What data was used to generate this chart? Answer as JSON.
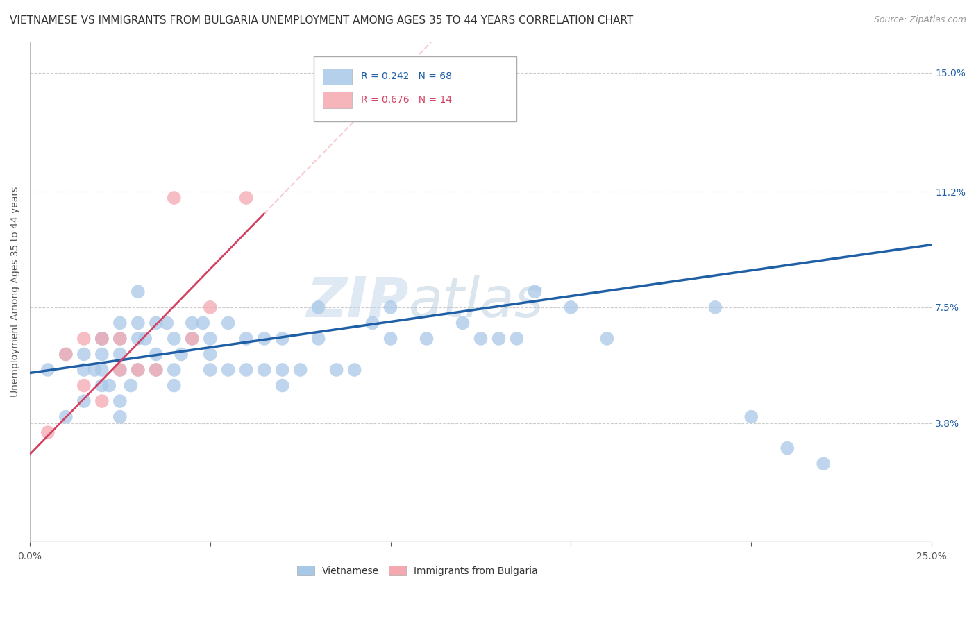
{
  "title": "VIETNAMESE VS IMMIGRANTS FROM BULGARIA UNEMPLOYMENT AMONG AGES 35 TO 44 YEARS CORRELATION CHART",
  "source": "Source: ZipAtlas.com",
  "ylabel": "Unemployment Among Ages 35 to 44 years",
  "xlim": [
    0.0,
    0.25
  ],
  "ylim": [
    0.0,
    0.16
  ],
  "xticks": [
    0.0,
    0.05,
    0.1,
    0.15,
    0.2,
    0.25
  ],
  "xticklabels": [
    "0.0%",
    "",
    "",
    "",
    "",
    "25.0%"
  ],
  "ytick_positions": [
    0.038,
    0.075,
    0.112,
    0.15
  ],
  "ytick_labels": [
    "3.8%",
    "7.5%",
    "11.2%",
    "15.0%"
  ],
  "r_vietnamese": 0.242,
  "n_vietnamese": 68,
  "r_bulgaria": 0.676,
  "n_bulgaria": 14,
  "color_vietnamese": "#a8c8e8",
  "color_bulgaria": "#f4a8b0",
  "line_color_vietnamese": "#1f5fa6",
  "line_color_bulgaria": "#d44060",
  "watermark_top": "ZIP",
  "watermark_bot": "atlas",
  "legend_label_viet": "Vietnamese",
  "legend_label_bulg": "Immigrants from Bulgaria",
  "bg_color": "#ffffff",
  "grid_color": "#cccccc",
  "title_fontsize": 11,
  "label_fontsize": 10,
  "tick_fontsize": 10,
  "vietnamese_x": [
    0.005,
    0.01,
    0.01,
    0.015,
    0.015,
    0.015,
    0.018,
    0.02,
    0.02,
    0.02,
    0.02,
    0.02,
    0.022,
    0.025,
    0.025,
    0.025,
    0.025,
    0.025,
    0.025,
    0.028,
    0.03,
    0.03,
    0.03,
    0.03,
    0.032,
    0.035,
    0.035,
    0.035,
    0.038,
    0.04,
    0.04,
    0.04,
    0.042,
    0.045,
    0.045,
    0.048,
    0.05,
    0.05,
    0.05,
    0.055,
    0.055,
    0.06,
    0.06,
    0.065,
    0.065,
    0.07,
    0.07,
    0.07,
    0.075,
    0.08,
    0.08,
    0.085,
    0.09,
    0.095,
    0.1,
    0.1,
    0.11,
    0.12,
    0.125,
    0.13,
    0.135,
    0.14,
    0.15,
    0.16,
    0.19,
    0.2,
    0.21,
    0.22
  ],
  "vietnamese_y": [
    0.055,
    0.06,
    0.04,
    0.06,
    0.055,
    0.045,
    0.055,
    0.065,
    0.055,
    0.05,
    0.06,
    0.065,
    0.05,
    0.06,
    0.055,
    0.065,
    0.045,
    0.04,
    0.07,
    0.05,
    0.065,
    0.055,
    0.08,
    0.07,
    0.065,
    0.07,
    0.06,
    0.055,
    0.07,
    0.055,
    0.065,
    0.05,
    0.06,
    0.065,
    0.07,
    0.07,
    0.06,
    0.055,
    0.065,
    0.055,
    0.07,
    0.065,
    0.055,
    0.065,
    0.055,
    0.055,
    0.065,
    0.05,
    0.055,
    0.065,
    0.075,
    0.055,
    0.055,
    0.07,
    0.065,
    0.075,
    0.065,
    0.07,
    0.065,
    0.065,
    0.065,
    0.08,
    0.075,
    0.065,
    0.075,
    0.04,
    0.03,
    0.025
  ],
  "bulgarian_x": [
    0.005,
    0.01,
    0.015,
    0.015,
    0.02,
    0.02,
    0.025,
    0.025,
    0.03,
    0.035,
    0.04,
    0.045,
    0.05,
    0.06
  ],
  "bulgarian_y": [
    0.035,
    0.06,
    0.065,
    0.05,
    0.065,
    0.045,
    0.055,
    0.065,
    0.055,
    0.055,
    0.11,
    0.065,
    0.075,
    0.11
  ],
  "viet_line_x0": 0.0,
  "viet_line_x1": 0.25,
  "viet_line_y0": 0.054,
  "viet_line_y1": 0.095,
  "bulg_line_x0": 0.0,
  "bulg_line_x1": 0.065,
  "bulg_line_y0": 0.028,
  "bulg_line_y1": 0.105
}
